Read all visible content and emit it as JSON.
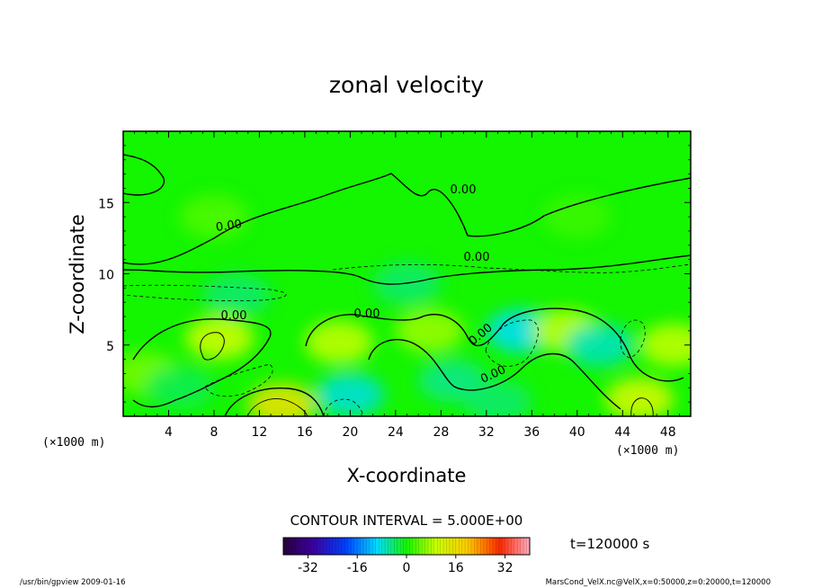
{
  "chart_data": {
    "type": "contour",
    "title": "zonal velocity",
    "xlabel": "X-coordinate",
    "ylabel": "Z-coordinate",
    "x_unit": "(×1000 m)",
    "y_unit": "(×1000 m)",
    "xlim": [
      0,
      50
    ],
    "ylim": [
      0,
      20
    ],
    "x_ticks": [
      4,
      8,
      12,
      16,
      20,
      24,
      28,
      32,
      36,
      40,
      44,
      48
    ],
    "y_ticks": [
      5,
      10,
      15
    ],
    "contour_labels": [
      "0.00",
      "0.00",
      "0.00",
      "0.00",
      "0.00",
      "0.00",
      "0.00"
    ],
    "contour_interval_text": "CONTOUR INTERVAL = 5.000E+00",
    "time_text": "t=120000 s",
    "colorbar": {
      "min": -40,
      "max": 40,
      "tick_labels": [
        "-32",
        "-16",
        "0",
        "16",
        "32"
      ],
      "tick_values": [
        -32,
        -16,
        0,
        16,
        32
      ]
    },
    "features": [
      {
        "x": 8.5,
        "z": 5.5,
        "value": 10
      },
      {
        "x": 14,
        "z": 0.8,
        "value": 15
      },
      {
        "x": 19,
        "z": 5.2,
        "value": 9
      },
      {
        "x": 20,
        "z": 1.5,
        "value": -8
      },
      {
        "x": 27,
        "z": 6.0,
        "value": 7
      },
      {
        "x": 29,
        "z": 2.5,
        "value": -5
      },
      {
        "x": 35,
        "z": 6.0,
        "value": -9
      },
      {
        "x": 39,
        "z": 6.0,
        "value": 9
      },
      {
        "x": 42,
        "z": 5.0,
        "value": -7
      },
      {
        "x": 45.5,
        "z": 1.2,
        "value": 11
      },
      {
        "x": 48.5,
        "z": 5.0,
        "value": 9
      },
      {
        "x": 25,
        "z": 9.3,
        "value": -4
      },
      {
        "x": 10,
        "z": 8.5,
        "value": -4
      },
      {
        "x": 8,
        "z": 14,
        "value": 3
      },
      {
        "x": 40,
        "z": 14,
        "value": 2
      },
      {
        "x": 2,
        "z": 3,
        "value": 5
      },
      {
        "x": 5,
        "z": 2,
        "value": -3
      },
      {
        "x": 33,
        "z": 1.0,
        "value": -4
      }
    ]
  },
  "footer": {
    "left": "/usr/bin/gpview  2009-01-16",
    "right": "MarsCond_VelX.nc@VelX,x=0:50000,z=0:20000,t=120000"
  },
  "colors": {
    "background": "#00ff00",
    "frame": "#000000"
  }
}
